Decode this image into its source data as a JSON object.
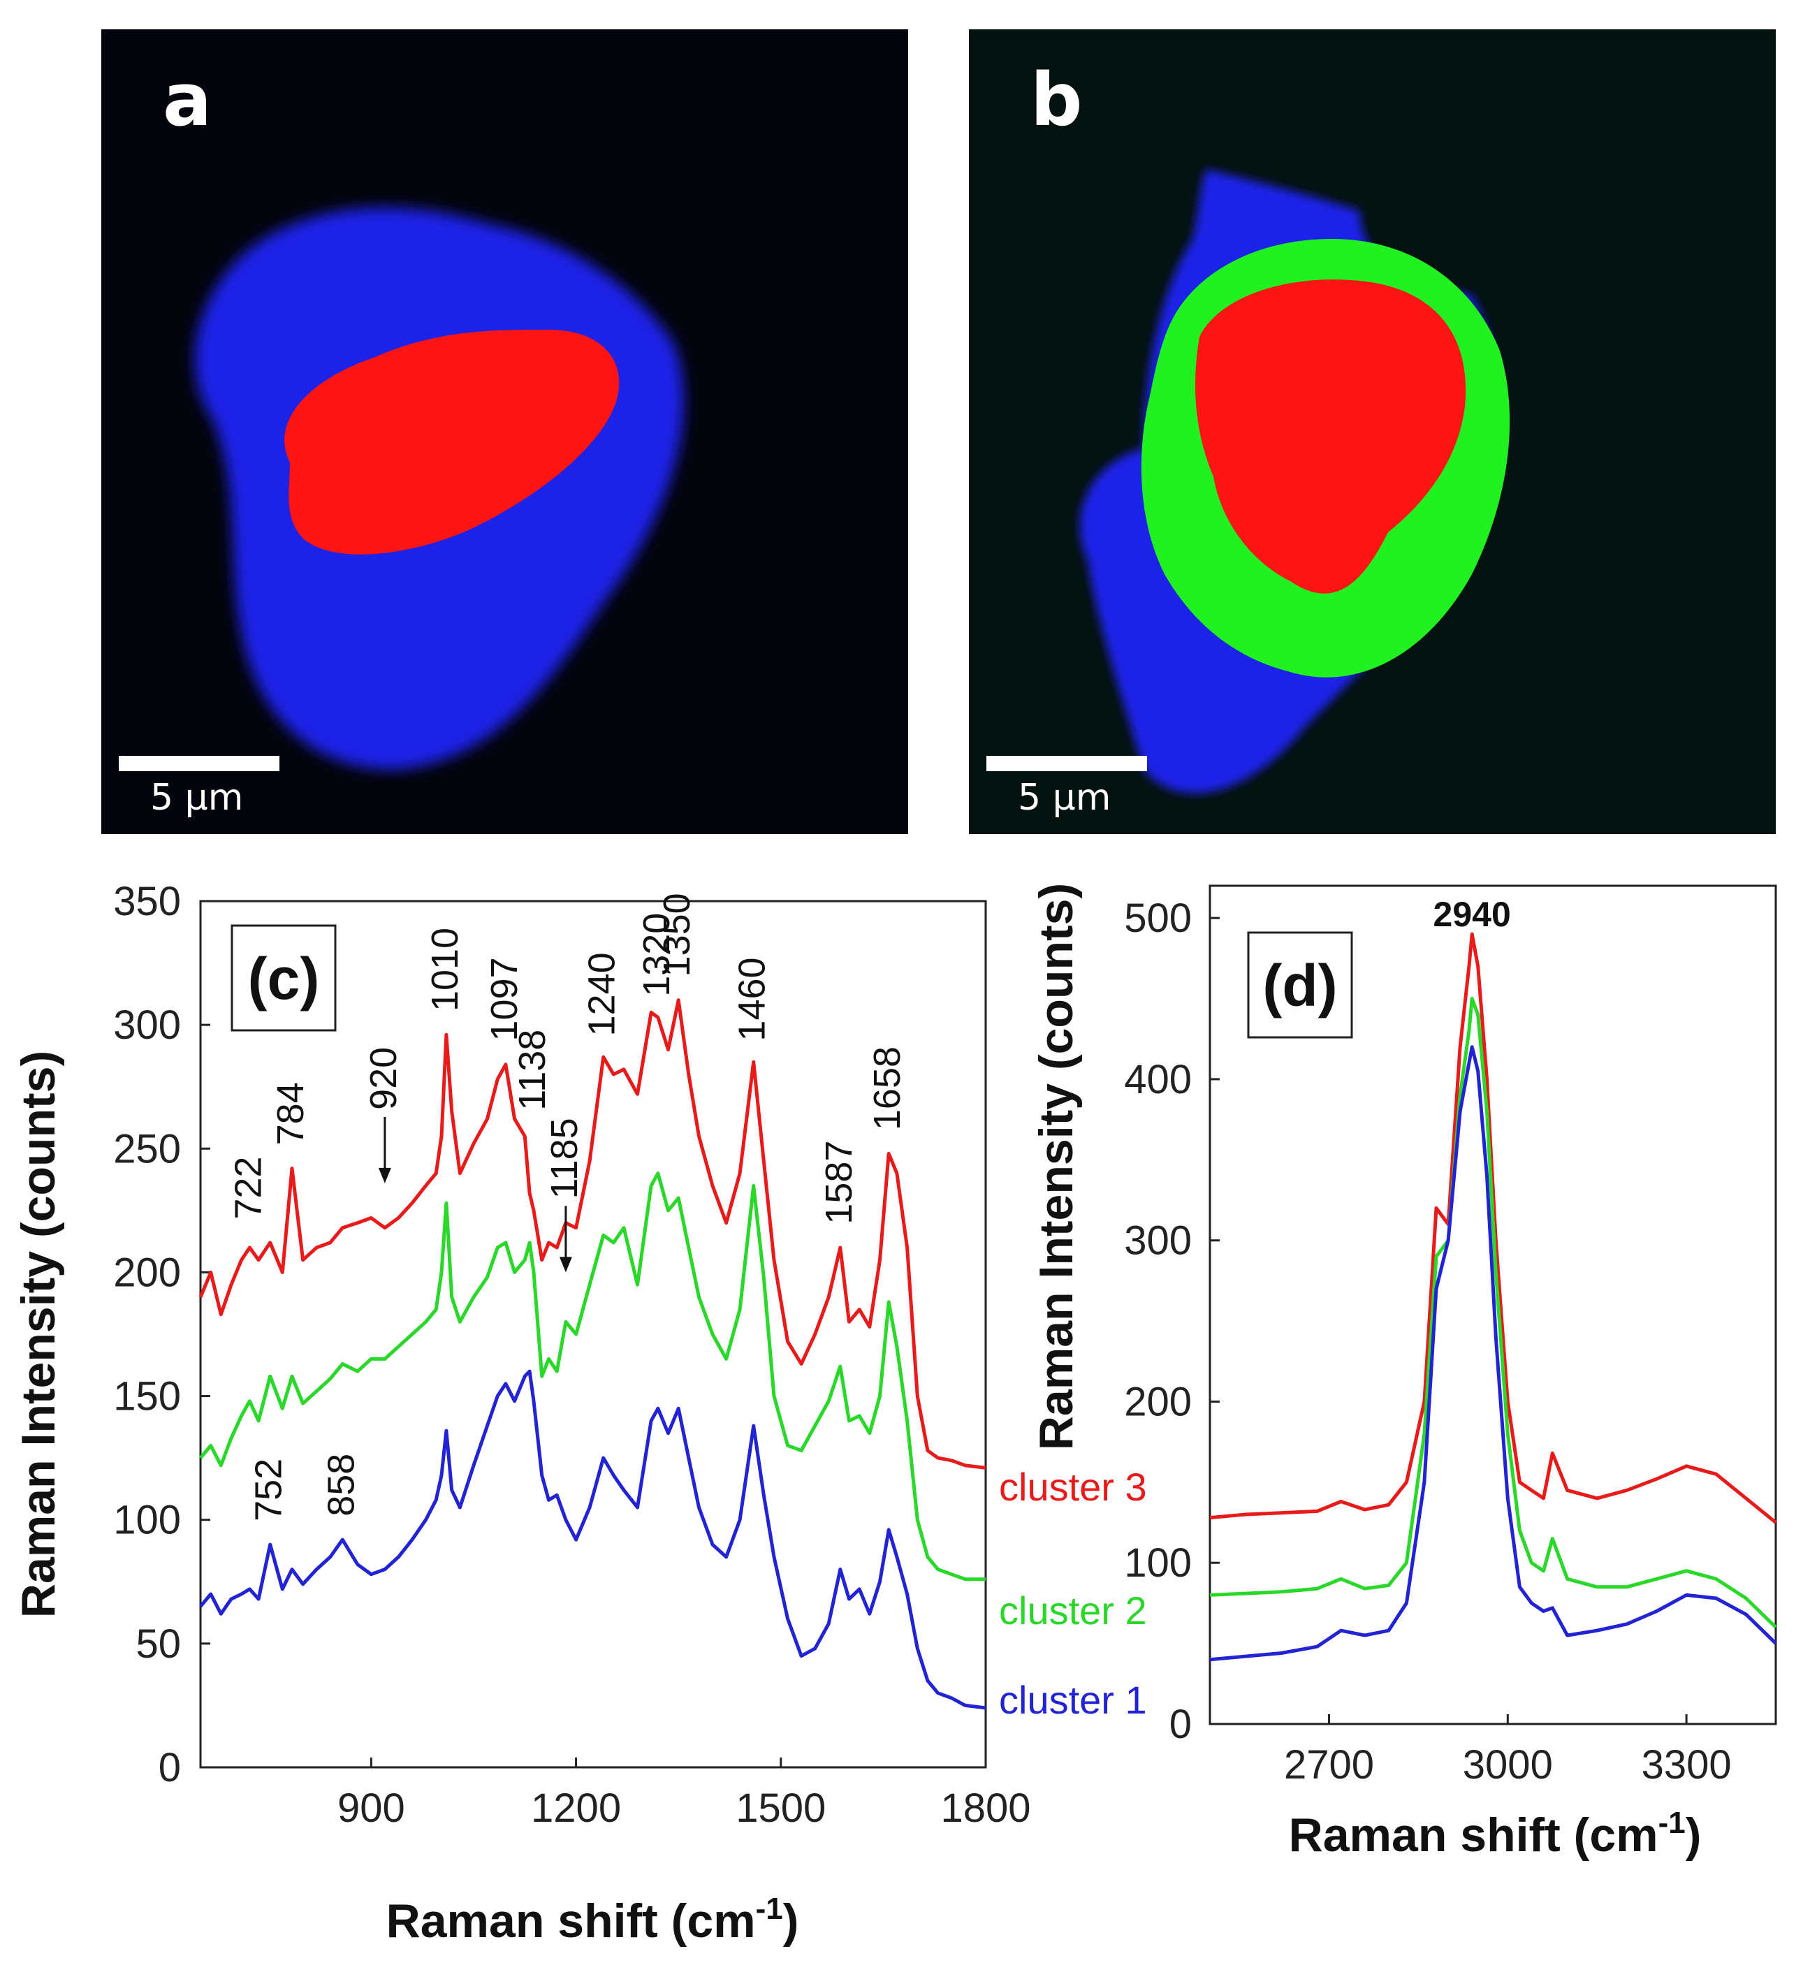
{
  "panels": {
    "a": {
      "letter": "a",
      "scale_label": "5 μm",
      "colors": {
        "background": "#03040c",
        "outer_region": "#1a22e8",
        "inner_region": "#ff1414"
      }
    },
    "b": {
      "letter": "b",
      "scale_label": "5 μm",
      "colors": {
        "background": "#04120f",
        "outer_region": "#1a22e8",
        "middle_region": "#21f021",
        "inner_region": "#ff1414"
      }
    }
  },
  "chart_data": [
    {
      "type": "line",
      "panel_label": "(c)",
      "xlabel_main": "Raman shift (cm",
      "xlabel_sup": "-1",
      "xlabel_end": ")",
      "ylabel": "Raman Intensity (counts)",
      "xlim": [
        650,
        1800
      ],
      "ylim": [
        0,
        350
      ],
      "xticks": [
        "900",
        "1200",
        "1500",
        "1800"
      ],
      "xtick_values": [
        900,
        1200,
        1500,
        1800
      ],
      "yticks": [
        "0",
        "50",
        "100",
        "150",
        "200",
        "250",
        "300",
        "350"
      ],
      "ytick_values": [
        0,
        50,
        100,
        150,
        200,
        250,
        300,
        350
      ],
      "series": [
        {
          "name": "cluster 3",
          "color": "#e81a1a",
          "x": [
            650,
            665,
            680,
            695,
            710,
            722,
            735,
            752,
            770,
            784,
            800,
            820,
            840,
            858,
            880,
            900,
            920,
            940,
            960,
            980,
            995,
            1003,
            1010,
            1018,
            1030,
            1050,
            1070,
            1085,
            1097,
            1110,
            1125,
            1132,
            1138,
            1150,
            1160,
            1172,
            1185,
            1200,
            1220,
            1240,
            1255,
            1270,
            1290,
            1310,
            1320,
            1335,
            1350,
            1365,
            1380,
            1400,
            1420,
            1440,
            1460,
            1475,
            1490,
            1510,
            1530,
            1550,
            1570,
            1587,
            1600,
            1615,
            1630,
            1645,
            1658,
            1670,
            1685,
            1700,
            1715,
            1730,
            1750,
            1770,
            1800
          ],
          "y": [
            190,
            200,
            183,
            195,
            205,
            210,
            205,
            212,
            200,
            242,
            205,
            210,
            212,
            218,
            220,
            222,
            218,
            222,
            228,
            235,
            240,
            255,
            296,
            265,
            240,
            252,
            262,
            278,
            284,
            262,
            255,
            232,
            225,
            205,
            212,
            210,
            220,
            218,
            245,
            287,
            280,
            282,
            272,
            305,
            303,
            290,
            310,
            280,
            255,
            235,
            220,
            240,
            285,
            245,
            205,
            172,
            163,
            175,
            190,
            210,
            180,
            185,
            178,
            205,
            248,
            240,
            210,
            150,
            128,
            125,
            124,
            122,
            121
          ]
        },
        {
          "name": "cluster 2",
          "color": "#29d829",
          "x": [
            650,
            665,
            680,
            695,
            710,
            722,
            735,
            752,
            770,
            784,
            800,
            820,
            840,
            858,
            880,
            900,
            920,
            940,
            960,
            980,
            995,
            1003,
            1010,
            1018,
            1030,
            1050,
            1070,
            1085,
            1097,
            1110,
            1125,
            1132,
            1138,
            1150,
            1160,
            1172,
            1185,
            1200,
            1220,
            1240,
            1255,
            1270,
            1290,
            1310,
            1320,
            1335,
            1350,
            1365,
            1380,
            1400,
            1420,
            1440,
            1460,
            1475,
            1490,
            1510,
            1530,
            1550,
            1570,
            1587,
            1600,
            1615,
            1630,
            1645,
            1658,
            1670,
            1685,
            1700,
            1715,
            1730,
            1750,
            1770,
            1800
          ],
          "y": [
            125,
            130,
            122,
            133,
            142,
            148,
            140,
            158,
            145,
            158,
            147,
            152,
            157,
            163,
            160,
            165,
            165,
            170,
            175,
            180,
            185,
            200,
            228,
            190,
            180,
            190,
            198,
            210,
            212,
            200,
            205,
            212,
            200,
            158,
            165,
            160,
            180,
            175,
            195,
            215,
            212,
            218,
            195,
            235,
            240,
            225,
            230,
            210,
            190,
            175,
            165,
            185,
            235,
            198,
            150,
            130,
            128,
            138,
            148,
            162,
            140,
            142,
            135,
            150,
            188,
            170,
            140,
            100,
            85,
            80,
            78,
            76,
            76
          ]
        },
        {
          "name": "cluster 1",
          "color": "#2323d6",
          "x": [
            650,
            665,
            680,
            695,
            710,
            722,
            735,
            752,
            770,
            784,
            800,
            820,
            840,
            858,
            880,
            900,
            920,
            940,
            960,
            980,
            995,
            1003,
            1010,
            1018,
            1030,
            1050,
            1070,
            1085,
            1097,
            1110,
            1125,
            1132,
            1138,
            1150,
            1160,
            1172,
            1185,
            1200,
            1220,
            1240,
            1255,
            1270,
            1290,
            1310,
            1320,
            1335,
            1350,
            1365,
            1380,
            1400,
            1420,
            1440,
            1460,
            1475,
            1490,
            1510,
            1530,
            1550,
            1570,
            1587,
            1600,
            1615,
            1630,
            1645,
            1658,
            1670,
            1685,
            1700,
            1715,
            1730,
            1750,
            1770,
            1800
          ],
          "y": [
            65,
            70,
            62,
            68,
            70,
            72,
            68,
            90,
            72,
            80,
            74,
            80,
            85,
            92,
            82,
            78,
            80,
            85,
            92,
            100,
            108,
            118,
            136,
            112,
            105,
            122,
            138,
            150,
            155,
            148,
            158,
            160,
            148,
            118,
            108,
            110,
            100,
            92,
            105,
            125,
            118,
            112,
            105,
            140,
            145,
            135,
            145,
            125,
            105,
            90,
            85,
            100,
            138,
            110,
            85,
            60,
            45,
            48,
            58,
            80,
            68,
            72,
            62,
            75,
            96,
            85,
            70,
            48,
            35,
            30,
            28,
            25,
            24
          ]
        }
      ],
      "peak_labels": [
        "722",
        "784",
        "920",
        "1010",
        "1097",
        "1138",
        "1185",
        "1240",
        "1320",
        "1350",
        "1460",
        "1587",
        "1658",
        "752",
        "858"
      ],
      "legend_entries": [
        "cluster 3",
        "cluster 2",
        "cluster 1"
      ]
    },
    {
      "type": "line",
      "panel_label": "(d)",
      "xlabel_main": "Raman shift (cm",
      "xlabel_sup": "-1",
      "xlabel_end": ")",
      "ylabel": "Raman Intensity (counts)",
      "xlim": [
        2500,
        3450
      ],
      "ylim": [
        0,
        520
      ],
      "xticks": [
        "2700",
        "3000",
        "3300"
      ],
      "xtick_values": [
        2700,
        3000,
        3300
      ],
      "yticks": [
        "0",
        "100",
        "200",
        "300",
        "400",
        "500"
      ],
      "ytick_values": [
        0,
        100,
        200,
        300,
        400,
        500
      ],
      "peak_label": "2940",
      "series": [
        {
          "name": "cluster 3",
          "color": "#e81a1a",
          "x": [
            2500,
            2560,
            2620,
            2680,
            2720,
            2760,
            2800,
            2830,
            2860,
            2880,
            2900,
            2920,
            2935,
            2940,
            2950,
            2965,
            2980,
            3000,
            3020,
            3040,
            3060,
            3075,
            3100,
            3150,
            3200,
            3250,
            3300,
            3350,
            3400,
            3450
          ],
          "y": [
            128,
            130,
            131,
            132,
            138,
            133,
            136,
            150,
            200,
            320,
            310,
            420,
            470,
            490,
            470,
            400,
            300,
            200,
            150,
            145,
            140,
            168,
            145,
            140,
            145,
            152,
            160,
            155,
            140,
            125
          ]
        },
        {
          "name": "cluster 2",
          "color": "#29d829",
          "x": [
            2500,
            2560,
            2620,
            2680,
            2720,
            2760,
            2800,
            2830,
            2860,
            2880,
            2900,
            2920,
            2935,
            2940,
            2950,
            2965,
            2980,
            3000,
            3020,
            3040,
            3060,
            3075,
            3100,
            3150,
            3200,
            3250,
            3300,
            3350,
            3400,
            3450
          ],
          "y": [
            80,
            81,
            82,
            84,
            90,
            84,
            86,
            100,
            180,
            290,
            300,
            390,
            430,
            450,
            440,
            380,
            280,
            180,
            120,
            100,
            95,
            115,
            90,
            85,
            85,
            90,
            95,
            90,
            78,
            60
          ]
        },
        {
          "name": "cluster 1",
          "color": "#2323d6",
          "x": [
            2500,
            2560,
            2620,
            2680,
            2720,
            2760,
            2800,
            2830,
            2860,
            2880,
            2900,
            2920,
            2935,
            2940,
            2950,
            2965,
            2980,
            3000,
            3020,
            3040,
            3060,
            3075,
            3100,
            3150,
            3200,
            3250,
            3300,
            3350,
            3400,
            3450
          ],
          "y": [
            40,
            42,
            44,
            48,
            58,
            55,
            58,
            75,
            150,
            270,
            300,
            380,
            410,
            420,
            405,
            340,
            240,
            140,
            85,
            75,
            70,
            72,
            55,
            58,
            62,
            70,
            80,
            78,
            68,
            50
          ]
        }
      ]
    }
  ]
}
